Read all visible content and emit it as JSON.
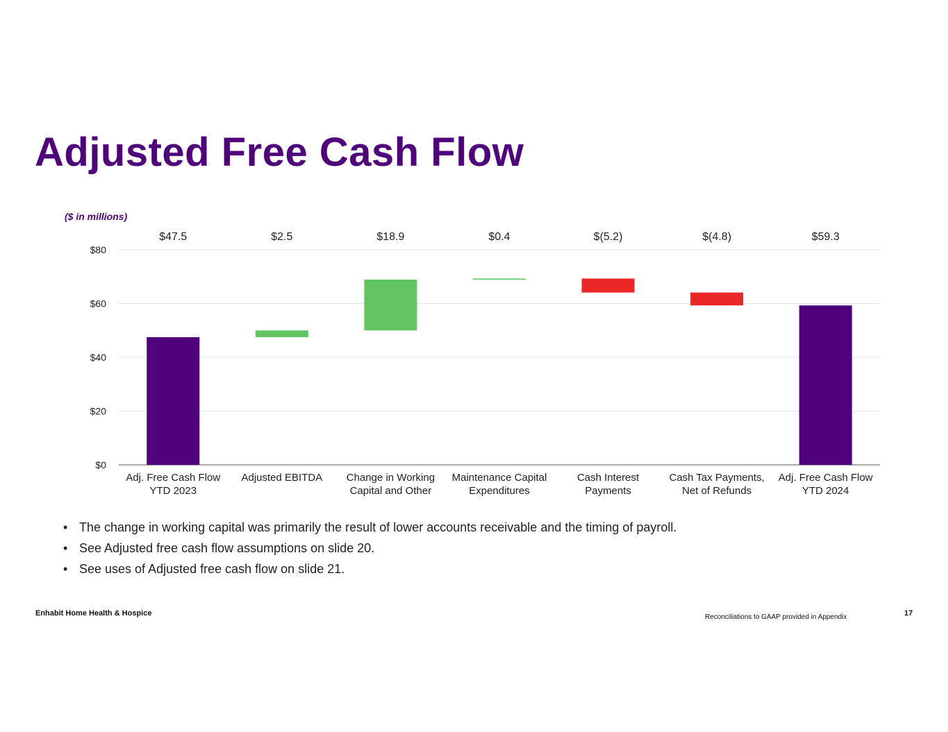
{
  "slide": {
    "title": "Adjusted Free Cash Flow",
    "units_label": "($ in millions)",
    "bullets": [
      "The change in working capital was primarily the result of lower accounts receivable and the timing of payroll.",
      "See Adjusted free cash flow assumptions on slide 20.",
      "See uses of Adjusted free cash flow on slide 21."
    ],
    "footer": {
      "company": "Enhabit Home Health & Hospice",
      "note": "Reconciliations to GAAP provided in Appendix",
      "page_number": "17"
    }
  },
  "colors": {
    "title": "#4f027c",
    "total": "#4f027c",
    "increase": "#62c462",
    "decrease": "#ec2727",
    "gridline": "#e3e3e3",
    "axis": "#555555"
  },
  "chart_data": {
    "type": "waterfall",
    "title": "",
    "ylabel": "",
    "ylim": [
      0,
      80
    ],
    "y_ticks": [
      0,
      20,
      40,
      60,
      80
    ],
    "y_tick_labels": [
      "$0",
      "$20",
      "$40",
      "$60",
      "$80"
    ],
    "grid": true,
    "legend": "none",
    "categories": [
      [
        "Adj. Free Cash Flow",
        "YTD 2023"
      ],
      [
        "Adjusted EBITDA"
      ],
      [
        "Change in Working",
        "Capital and Other"
      ],
      [
        "Maintenance Capital",
        "Expenditures"
      ],
      [
        "Cash Interest",
        "Payments"
      ],
      [
        "Cash Tax Payments,",
        "Net of Refunds"
      ],
      [
        "Adj. Free Cash Flow",
        "YTD 2024"
      ]
    ],
    "values": [
      47.5,
      2.5,
      18.9,
      0.4,
      -5.2,
      -4.8,
      59.3
    ],
    "kinds": [
      "total",
      "increase",
      "increase",
      "increase",
      "decrease",
      "decrease",
      "total"
    ],
    "value_labels": [
      "$47.5",
      "$2.5",
      "$18.9",
      "$0.4",
      "$(5.2)",
      "$(4.8)",
      "$59.3"
    ]
  }
}
